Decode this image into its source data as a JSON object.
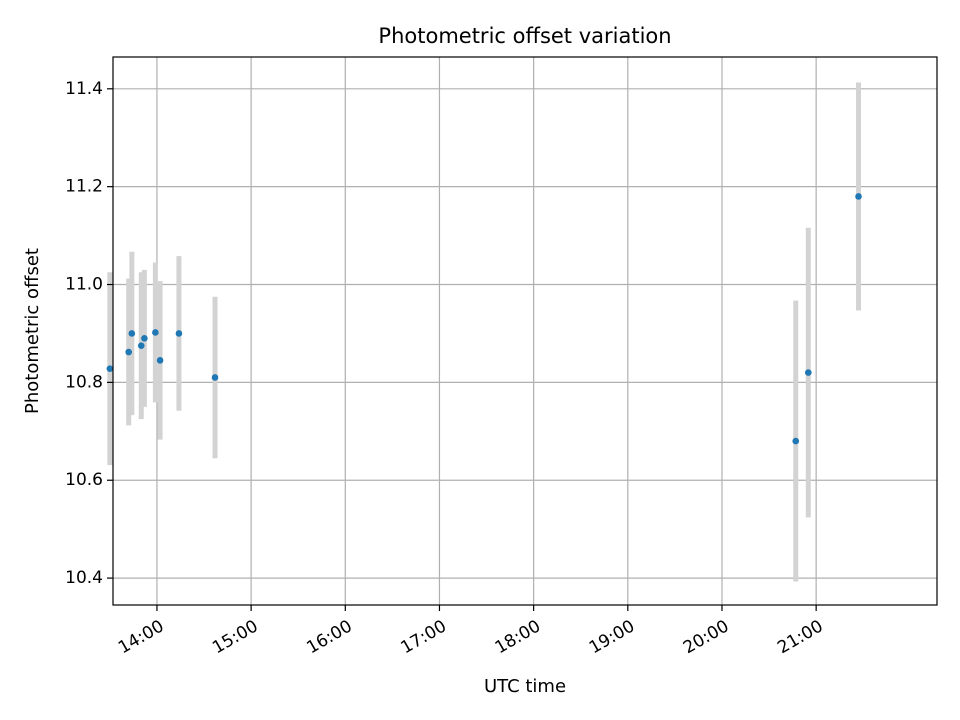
{
  "chart_data": {
    "type": "scatter",
    "title": "Photometric offset variation",
    "xlabel": "UTC time",
    "ylabel": "Photometric offset",
    "x_tick_labels": [
      "14:00",
      "15:00",
      "16:00",
      "17:00",
      "18:00",
      "19:00",
      "20:00",
      "21:00"
    ],
    "y_tick_labels": [
      "10.4",
      "10.6",
      "10.8",
      "11.0",
      "11.2",
      "11.4"
    ],
    "x_ticks": [
      "14:00",
      "15:00",
      "16:00",
      "17:00",
      "18:00",
      "19:00",
      "20:00",
      "21:00"
    ],
    "y_ticks": [
      10.4,
      10.6,
      10.8,
      11.0,
      11.2,
      11.4
    ],
    "xlim": [
      "13:32",
      "22:17"
    ],
    "ylim": [
      10.345,
      11.465
    ],
    "grid": true,
    "marker_color": "#1f77b4",
    "errorbar_color": "#d3d3d3",
    "points": [
      {
        "x": "13:30",
        "y": 10.828,
        "err": 0.197
      },
      {
        "x": "13:42",
        "y": 10.862,
        "err": 0.15
      },
      {
        "x": "13:44",
        "y": 10.9,
        "err": 0.167
      },
      {
        "x": "13:50",
        "y": 10.875,
        "err": 0.15
      },
      {
        "x": "13:52",
        "y": 10.89,
        "err": 0.14
      },
      {
        "x": "13:59",
        "y": 10.902,
        "err": 0.143
      },
      {
        "x": "14:02",
        "y": 10.845,
        "err": 0.162
      },
      {
        "x": "14:14",
        "y": 10.9,
        "err": 0.158
      },
      {
        "x": "14:37",
        "y": 10.81,
        "err": 0.165
      },
      {
        "x": "20:47",
        "y": 10.68,
        "err": 0.287
      },
      {
        "x": "20:55",
        "y": 10.82,
        "err": 0.296
      },
      {
        "x": "21:27",
        "y": 11.18,
        "err": 0.233
      }
    ]
  }
}
